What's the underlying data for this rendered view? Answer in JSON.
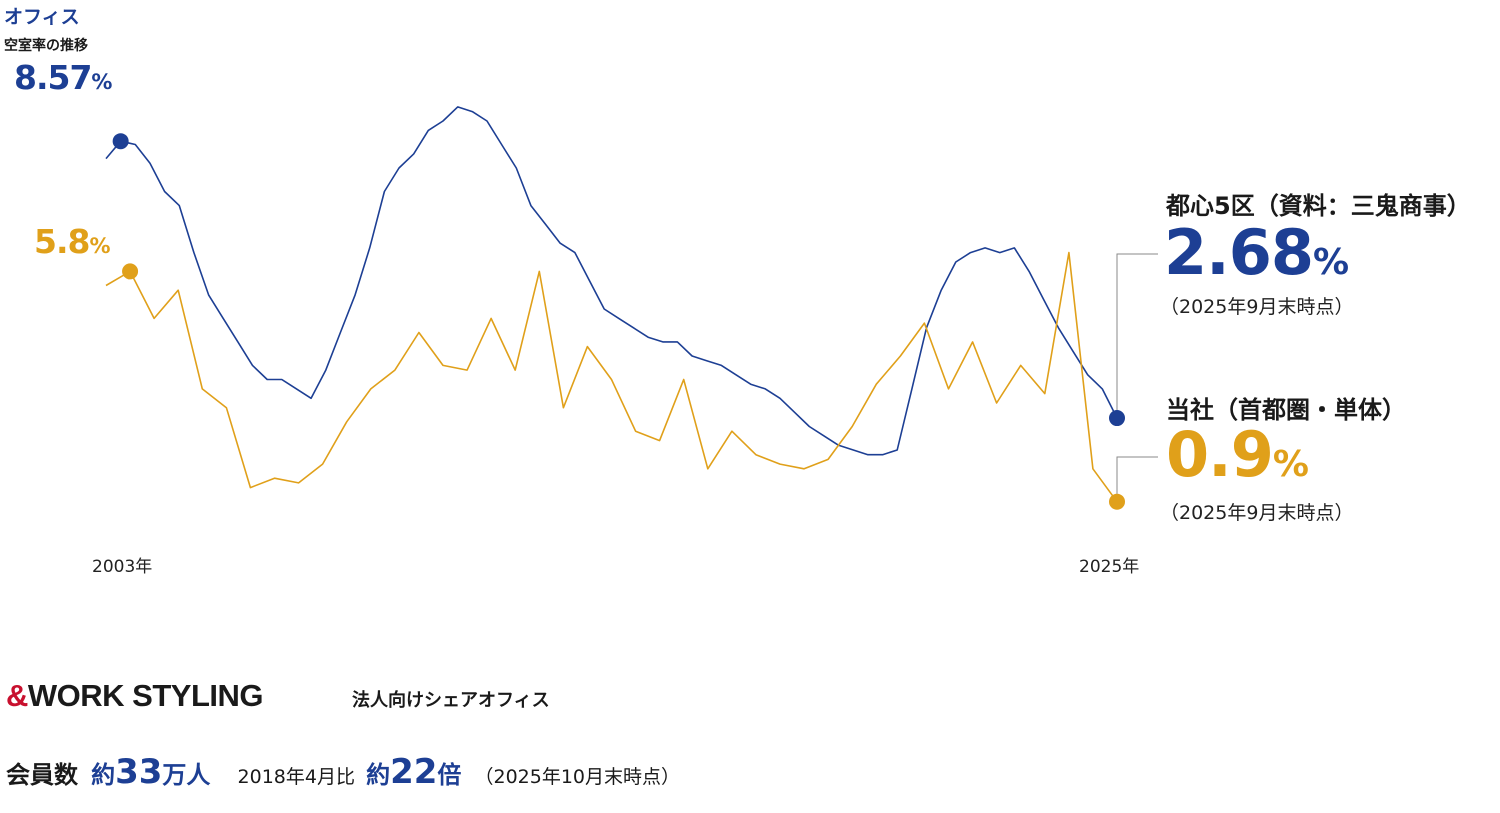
{
  "chart_data": {
    "type": "line",
    "title": "オフィス",
    "subtitle": "空室率の推移",
    "x_start_label": "2003年",
    "x_end_label": "2025年",
    "series": [
      {
        "name": "都心5区（資料：三鬼商事）",
        "color": "#1d3f94",
        "start_label": "8.57%",
        "end_label": "2.68%",
        "end_note": "（2025年9月末時点）",
        "values": [
          8.2,
          8.57,
          8.5,
          8.1,
          7.5,
          7.2,
          6.2,
          5.3,
          4.8,
          4.3,
          3.8,
          3.5,
          3.5,
          3.3,
          3.1,
          3.7,
          4.5,
          5.3,
          6.3,
          7.5,
          8.0,
          8.3,
          8.8,
          9.0,
          9.3,
          9.2,
          9.0,
          8.5,
          8.0,
          7.2,
          6.8,
          6.4,
          6.2,
          5.6,
          5.0,
          4.8,
          4.6,
          4.4,
          4.3,
          4.3,
          4.0,
          3.9,
          3.8,
          3.6,
          3.4,
          3.3,
          3.1,
          2.8,
          2.5,
          2.3,
          2.1,
          2.0,
          1.9,
          1.9,
          2.0,
          3.3,
          4.6,
          5.4,
          6.0,
          6.2,
          6.3,
          6.2,
          6.3,
          5.8,
          5.2,
          4.6,
          4.1,
          3.6,
          3.3,
          2.68
        ]
      },
      {
        "name": "当社（首都圏・単体）",
        "color": "#e0a01a",
        "start_label": "5.8%",
        "end_label": "0.9%",
        "end_note": "（2025年9月末時点）",
        "values": [
          5.5,
          5.8,
          4.8,
          5.4,
          3.3,
          2.9,
          1.2,
          1.4,
          1.3,
          1.7,
          2.6,
          3.3,
          3.7,
          4.5,
          3.8,
          3.7,
          4.8,
          3.7,
          5.8,
          2.9,
          4.2,
          3.5,
          2.4,
          2.2,
          3.5,
          1.6,
          2.4,
          1.9,
          1.7,
          1.6,
          1.8,
          2.5,
          3.4,
          4.0,
          4.7,
          3.3,
          4.3,
          3.0,
          3.8,
          3.2,
          6.2,
          1.6,
          0.9
        ]
      }
    ]
  },
  "brand": {
    "logo_amp": "&",
    "logo_text": "WORK STYLING",
    "tagline": "法人向けシェアオフィス"
  },
  "stats": {
    "members_label": "会員数",
    "members_prefix": "約",
    "members_value": "33",
    "members_unit": "万人",
    "compare_label": "2018年4月比",
    "compare_prefix": "約",
    "compare_value": "22",
    "compare_unit": "倍",
    "note": "（2025年10月末時点）"
  }
}
